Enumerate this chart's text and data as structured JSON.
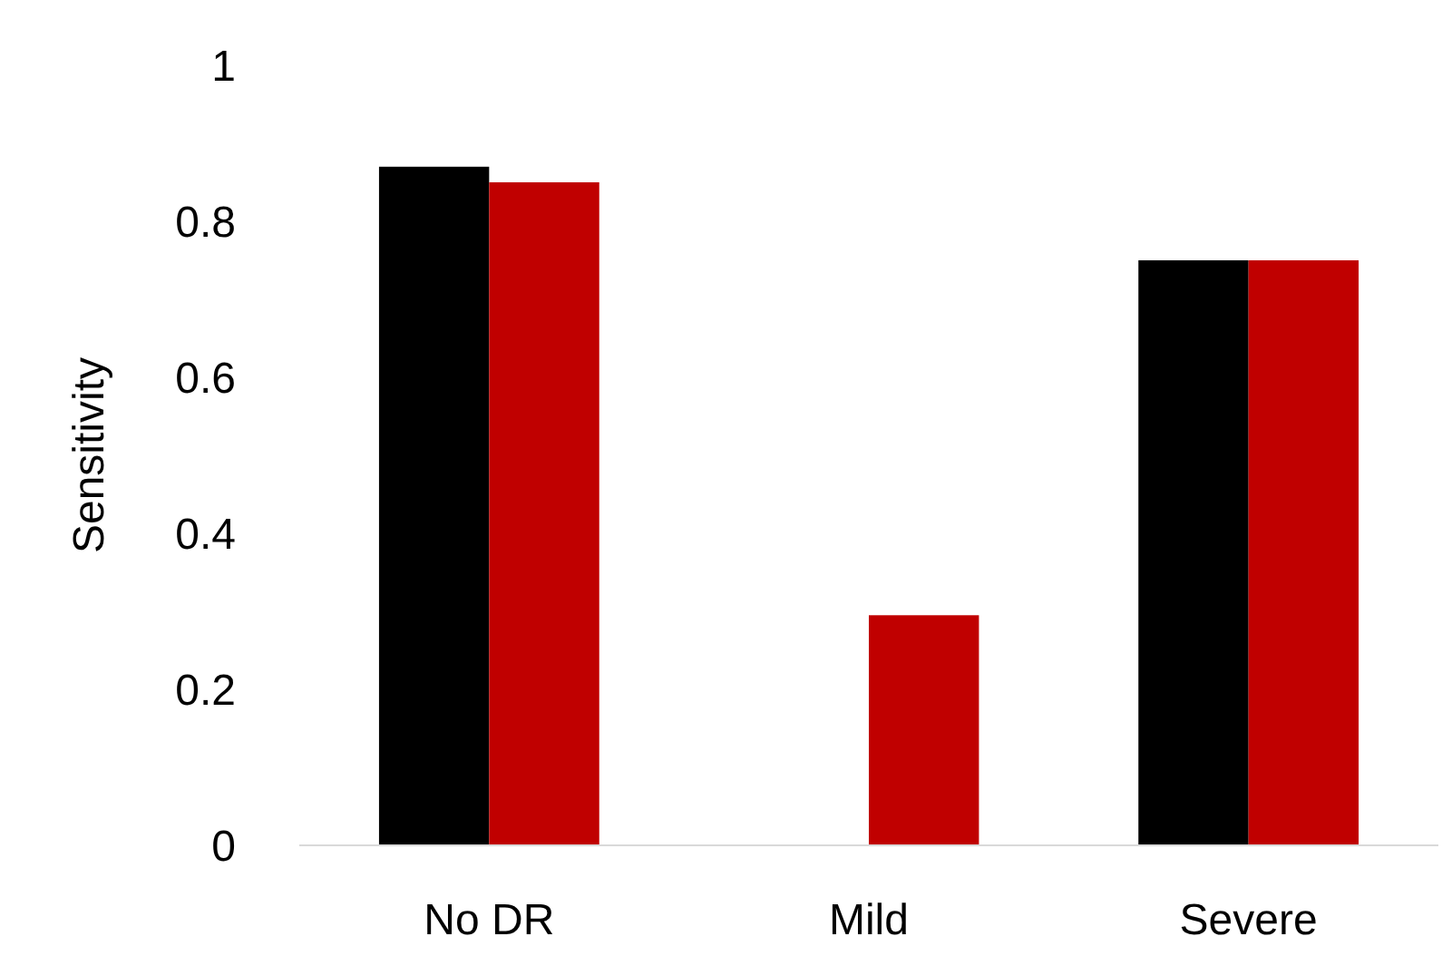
{
  "chart_data": {
    "type": "bar",
    "ylabel": "Sensitivity",
    "categories": [
      "No DR",
      "Mild",
      "Severe"
    ],
    "series": [
      {
        "color": "#000000",
        "values": [
          0.87,
          0,
          0.75
        ]
      },
      {
        "color": "#c00000",
        "values": [
          0.85,
          0.295,
          0.75
        ]
      }
    ],
    "ylim": [
      0,
      1
    ],
    "yticks": [
      0,
      0.2,
      0.4,
      0.6,
      0.8,
      1
    ],
    "grid": false
  }
}
